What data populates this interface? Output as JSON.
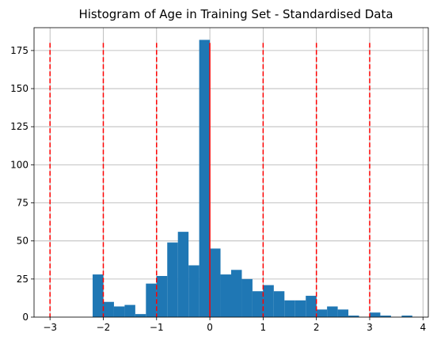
{
  "chart_data": {
    "type": "bar",
    "title": "Histogram of Age in Training Set - Standardised Data",
    "xlabel": "",
    "ylabel": "",
    "xlim": [
      -3.3,
      4.1
    ],
    "ylim": [
      0,
      190
    ],
    "grid": true,
    "bar_color": "#1f77b4",
    "vline_color": "#ff0000",
    "x_ticks": [
      -3,
      -2,
      -1,
      0,
      1,
      2,
      3,
      4
    ],
    "y_ticks": [
      0,
      25,
      50,
      75,
      100,
      125,
      150,
      175
    ],
    "bins": [
      {
        "x0": -2.2,
        "x1": -2.0,
        "count": 28
      },
      {
        "x0": -2.0,
        "x1": -1.8,
        "count": 10
      },
      {
        "x0": -1.8,
        "x1": -1.6,
        "count": 7
      },
      {
        "x0": -1.6,
        "x1": -1.4,
        "count": 8
      },
      {
        "x0": -1.4,
        "x1": -1.2,
        "count": 2
      },
      {
        "x0": -1.2,
        "x1": -1.0,
        "count": 22
      },
      {
        "x0": -1.0,
        "x1": -0.8,
        "count": 27
      },
      {
        "x0": -0.8,
        "x1": -0.6,
        "count": 49
      },
      {
        "x0": -0.6,
        "x1": -0.4,
        "count": 56
      },
      {
        "x0": -0.4,
        "x1": -0.2,
        "count": 34
      },
      {
        "x0": -0.2,
        "x1": 0.0,
        "count": 182
      },
      {
        "x0": 0.0,
        "x1": 0.2,
        "count": 45
      },
      {
        "x0": 0.2,
        "x1": 0.4,
        "count": 28
      },
      {
        "x0": 0.4,
        "x1": 0.6,
        "count": 31
      },
      {
        "x0": 0.6,
        "x1": 0.8,
        "count": 25
      },
      {
        "x0": 0.8,
        "x1": 1.0,
        "count": 17
      },
      {
        "x0": 1.0,
        "x1": 1.2,
        "count": 21
      },
      {
        "x0": 1.2,
        "x1": 1.4,
        "count": 17
      },
      {
        "x0": 1.4,
        "x1": 1.6,
        "count": 11
      },
      {
        "x0": 1.6,
        "x1": 1.8,
        "count": 11
      },
      {
        "x0": 1.8,
        "x1": 2.0,
        "count": 14
      },
      {
        "x0": 2.0,
        "x1": 2.2,
        "count": 5
      },
      {
        "x0": 2.2,
        "x1": 2.4,
        "count": 7
      },
      {
        "x0": 2.4,
        "x1": 2.6,
        "count": 5
      },
      {
        "x0": 2.6,
        "x1": 2.8,
        "count": 1
      },
      {
        "x0": 2.8,
        "x1": 3.0,
        "count": 0
      },
      {
        "x0": 3.0,
        "x1": 3.2,
        "count": 3
      },
      {
        "x0": 3.2,
        "x1": 3.4,
        "count": 1
      },
      {
        "x0": 3.4,
        "x1": 3.6,
        "count": 0
      },
      {
        "x0": 3.6,
        "x1": 3.8,
        "count": 1
      },
      {
        "x0": 3.8,
        "x1": 4.0,
        "count": 0
      }
    ],
    "vlines": [
      {
        "x": -3,
        "y_max": 180,
        "style": "dashed"
      },
      {
        "x": -2,
        "y_max": 180,
        "style": "dashed"
      },
      {
        "x": -1,
        "y_max": 180,
        "style": "dashed"
      },
      {
        "x": 0,
        "y_max": 180,
        "style": "solid"
      },
      {
        "x": 1,
        "y_max": 180,
        "style": "dashed"
      },
      {
        "x": 2,
        "y_max": 180,
        "style": "dashed"
      },
      {
        "x": 3,
        "y_max": 180,
        "style": "dashed"
      }
    ]
  }
}
